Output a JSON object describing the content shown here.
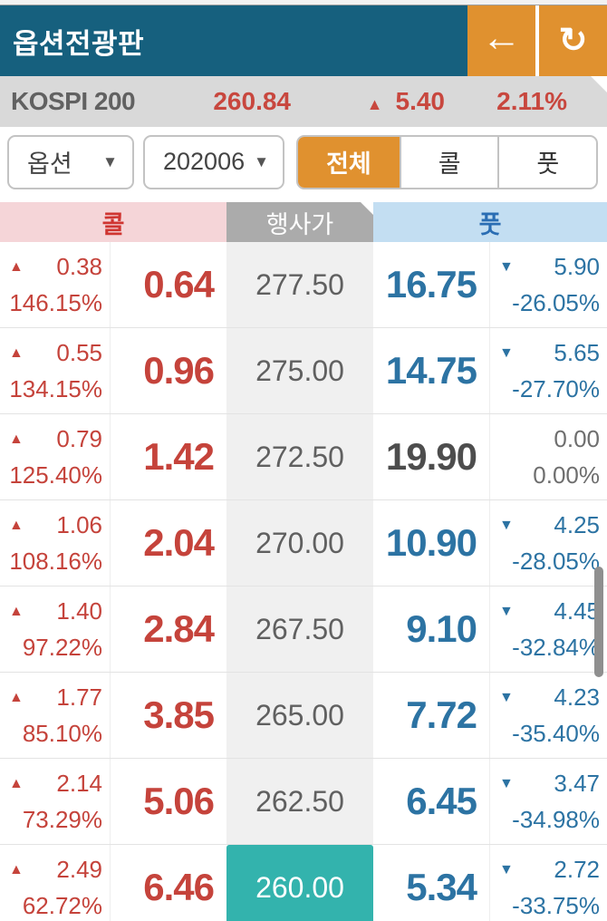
{
  "app": {
    "title": "옵션전광판"
  },
  "toolbar": {
    "back_icon": "←",
    "refresh_icon": "↻"
  },
  "index_bar": {
    "name": "KOSPI 200",
    "price": "260.84",
    "direction_icon": "▲",
    "change": "5.40",
    "change_pct": "2.11%"
  },
  "filters": {
    "option_select": {
      "value": "옵션",
      "arrow_icon": "▼"
    },
    "expiry_select": {
      "value": "202006",
      "arrow_icon": "▼"
    },
    "view_tabs": [
      {
        "label": "전체",
        "selected": true
      },
      {
        "label": "콜",
        "selected": false
      },
      {
        "label": "풋",
        "selected": false
      }
    ]
  },
  "table": {
    "headers": {
      "call": "콜",
      "strike": "행사가",
      "put": "풋"
    },
    "icons": {
      "up": "▲",
      "down": "▼"
    },
    "rows": [
      {
        "call_change": "0.38",
        "call_pct": "146.15%",
        "call_price": "0.64",
        "strike": "277.50",
        "put_price": "16.75",
        "put_change": "5.90",
        "put_pct": "-26.05%",
        "call_dir": "up",
        "put_dir": "down",
        "atm": false
      },
      {
        "call_change": "0.55",
        "call_pct": "134.15%",
        "call_price": "0.96",
        "strike": "275.00",
        "put_price": "14.75",
        "put_change": "5.65",
        "put_pct": "-27.70%",
        "call_dir": "up",
        "put_dir": "down",
        "atm": false
      },
      {
        "call_change": "0.79",
        "call_pct": "125.40%",
        "call_price": "1.42",
        "strike": "272.50",
        "put_price": "19.90",
        "put_change": "0.00",
        "put_pct": "0.00%",
        "call_dir": "up",
        "put_dir": "flat",
        "atm": false
      },
      {
        "call_change": "1.06",
        "call_pct": "108.16%",
        "call_price": "2.04",
        "strike": "270.00",
        "put_price": "10.90",
        "put_change": "4.25",
        "put_pct": "-28.05%",
        "call_dir": "up",
        "put_dir": "down",
        "atm": false
      },
      {
        "call_change": "1.40",
        "call_pct": "97.22%",
        "call_price": "2.84",
        "strike": "267.50",
        "put_price": "9.10",
        "put_change": "4.45",
        "put_pct": "-32.84%",
        "call_dir": "up",
        "put_dir": "down",
        "atm": false
      },
      {
        "call_change": "1.77",
        "call_pct": "85.10%",
        "call_price": "3.85",
        "strike": "265.00",
        "put_price": "7.72",
        "put_change": "4.23",
        "put_pct": "-35.40%",
        "call_dir": "up",
        "put_dir": "down",
        "atm": false
      },
      {
        "call_change": "2.14",
        "call_pct": "73.29%",
        "call_price": "5.06",
        "strike": "262.50",
        "put_price": "6.45",
        "put_change": "3.47",
        "put_pct": "-34.98%",
        "call_dir": "up",
        "put_dir": "down",
        "atm": false
      },
      {
        "call_change": "2.49",
        "call_pct": "62.72%",
        "call_price": "6.46",
        "strike": "260.00",
        "put_price": "5.34",
        "put_change": "2.72",
        "put_pct": "-33.75%",
        "call_dir": "up",
        "put_dir": "down",
        "atm": true
      }
    ]
  },
  "colors": {
    "header_bg": "#16607e",
    "accent_orange": "#e0912f",
    "up_red": "#c5433b",
    "down_blue": "#2c73a3",
    "atm_teal": "#33b3ad",
    "index_bar_bg": "#d9d9d9"
  }
}
